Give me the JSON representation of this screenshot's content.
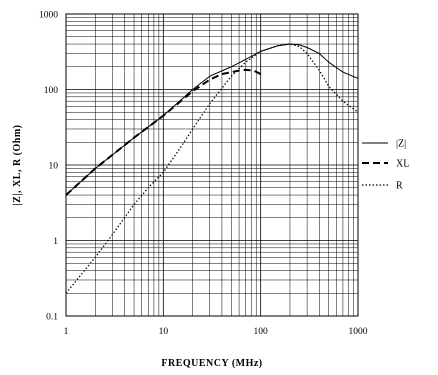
{
  "chart_data": {
    "type": "line",
    "xlabel": "FREQUENCY (MHz)",
    "ylabel": "|Z|, XL, R (Ohm)",
    "x_scale": "log",
    "y_scale": "log",
    "xlim": [
      1,
      1000
    ],
    "ylim": [
      0.1,
      1000
    ],
    "grid": true,
    "legend_position": "right",
    "x_ticks": [
      "1",
      "10",
      "100",
      "1000"
    ],
    "y_ticks": [
      "0.1",
      "1",
      "10",
      "100",
      "1000"
    ],
    "series": [
      {
        "name": "|Z|",
        "style": "solid",
        "x": [
          1,
          2,
          5,
          10,
          20,
          30,
          50,
          70,
          100,
          150,
          200,
          250,
          300,
          400,
          500,
          700,
          1000
        ],
        "y": [
          4,
          9,
          23,
          45,
          100,
          150,
          200,
          250,
          320,
          380,
          400,
          390,
          360,
          300,
          230,
          170,
          140
        ]
      },
      {
        "name": "XL",
        "style": "dashed",
        "x": [
          1,
          2,
          5,
          10,
          20,
          30,
          40,
          50,
          60,
          70,
          80,
          90,
          100
        ],
        "y": [
          4,
          9,
          23,
          45,
          95,
          135,
          160,
          170,
          178,
          182,
          180,
          172,
          160
        ]
      },
      {
        "name": "R",
        "style": "dotted",
        "x": [
          1,
          2,
          3,
          5,
          7,
          10,
          15,
          20,
          30,
          50,
          70,
          100,
          150,
          200,
          250,
          300,
          400,
          500,
          700,
          1000
        ],
        "y": [
          0.2,
          0.6,
          1.2,
          3,
          5,
          8,
          17,
          30,
          65,
          150,
          230,
          320,
          380,
          400,
          370,
          300,
          180,
          110,
          70,
          50
        ]
      }
    ]
  }
}
